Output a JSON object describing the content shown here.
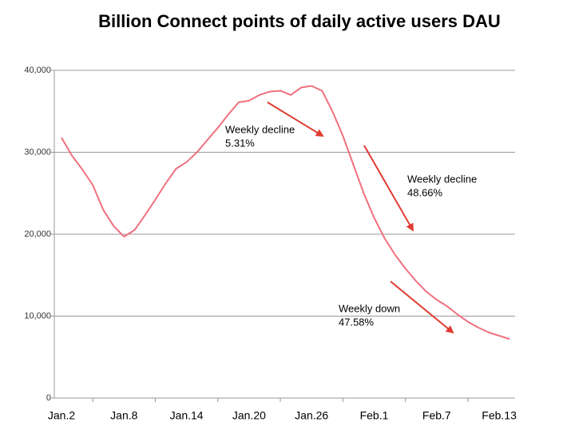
{
  "chart_data": {
    "type": "line",
    "title": "Billion Connect points of daily active users DAU",
    "categories": [
      "Jan.2",
      null,
      null,
      null,
      null,
      null,
      "Jan.8",
      null,
      null,
      null,
      null,
      null,
      "Jan.14",
      null,
      null,
      null,
      null,
      null,
      "Jan.20",
      null,
      null,
      null,
      null,
      null,
      "Jan.26",
      null,
      null,
      null,
      null,
      null,
      "Feb.1",
      null,
      null,
      null,
      null,
      null,
      "Feb.7",
      null,
      null,
      null,
      null,
      null,
      "Feb.13",
      null
    ],
    "series": [
      {
        "name": "DAU",
        "color": "#f0707e",
        "values": [
          31800,
          29600,
          27900,
          26000,
          23000,
          21000,
          19700,
          20500,
          22300,
          24200,
          26200,
          28000,
          28800,
          30000,
          31500,
          33000,
          34600,
          36100,
          36300,
          37000,
          37400,
          37500,
          37000,
          37900,
          38100,
          37500,
          35000,
          32000,
          28500,
          25000,
          22000,
          19500,
          17500,
          15800,
          14300,
          13000,
          12000,
          11200,
          10200,
          9300,
          8600,
          8000,
          7600,
          7200
        ]
      }
    ],
    "ylim": [
      0,
      40000
    ],
    "yticks": [
      0,
      {
        "value": 10000,
        "label": "10,000"
      },
      {
        "value": 20000,
        "label": "20,000"
      },
      {
        "value": 30000,
        "label": "30,000"
      },
      {
        "value": 40000,
        "label": "40,000"
      }
    ],
    "grid": true,
    "annotations": [
      {
        "lines": [
          "Weekly decline",
          "5.31%"
        ]
      },
      {
        "lines": [
          "Weekly decline",
          "48.66%"
        ]
      },
      {
        "lines": [
          "Weekly down",
          "47.58%"
        ]
      }
    ]
  }
}
